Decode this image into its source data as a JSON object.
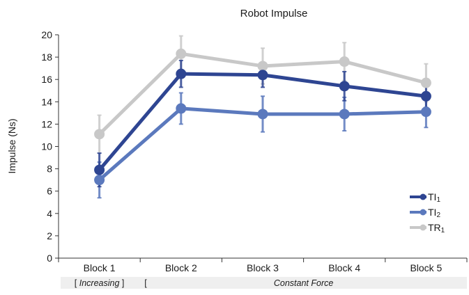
{
  "chart_data": {
    "type": "line",
    "title": "Robot Impulse",
    "xlabel": "",
    "ylabel": "Impulse (Ns)",
    "categories": [
      "Block 1",
      "Block 2",
      "Block 3",
      "Block 4",
      "Block 5"
    ],
    "ylim": [
      0,
      20
    ],
    "yticks": [
      0,
      2,
      4,
      6,
      8,
      10,
      12,
      14,
      16,
      18,
      20
    ],
    "grid": false,
    "legend_position": "bottom-right",
    "series": [
      {
        "name_main": "TI",
        "name_sub": "1",
        "color": "#2e4592",
        "values": [
          7.9,
          16.5,
          16.4,
          15.4,
          14.5
        ],
        "err": [
          1.5,
          1.2,
          1.1,
          1.3,
          1.0
        ]
      },
      {
        "name_main": "TI",
        "name_sub": "2",
        "color": "#5b79bd",
        "values": [
          7.0,
          13.4,
          12.9,
          12.9,
          13.1
        ],
        "err": [
          1.6,
          1.4,
          1.6,
          1.5,
          1.4
        ]
      },
      {
        "name_main": "TR",
        "name_sub": "1",
        "color": "#c8c8c8",
        "values": [
          11.1,
          18.3,
          17.2,
          17.6,
          15.7
        ],
        "err": [
          1.7,
          1.6,
          1.6,
          1.7,
          1.7
        ]
      }
    ],
    "phase_labels": [
      {
        "text": "Increasing",
        "open": "[ ",
        "close": " ]",
        "cols": [
          0,
          0
        ]
      },
      {
        "text": "Constant Force",
        "open": "[",
        "close": "",
        "cols": [
          1,
          4
        ]
      }
    ]
  }
}
